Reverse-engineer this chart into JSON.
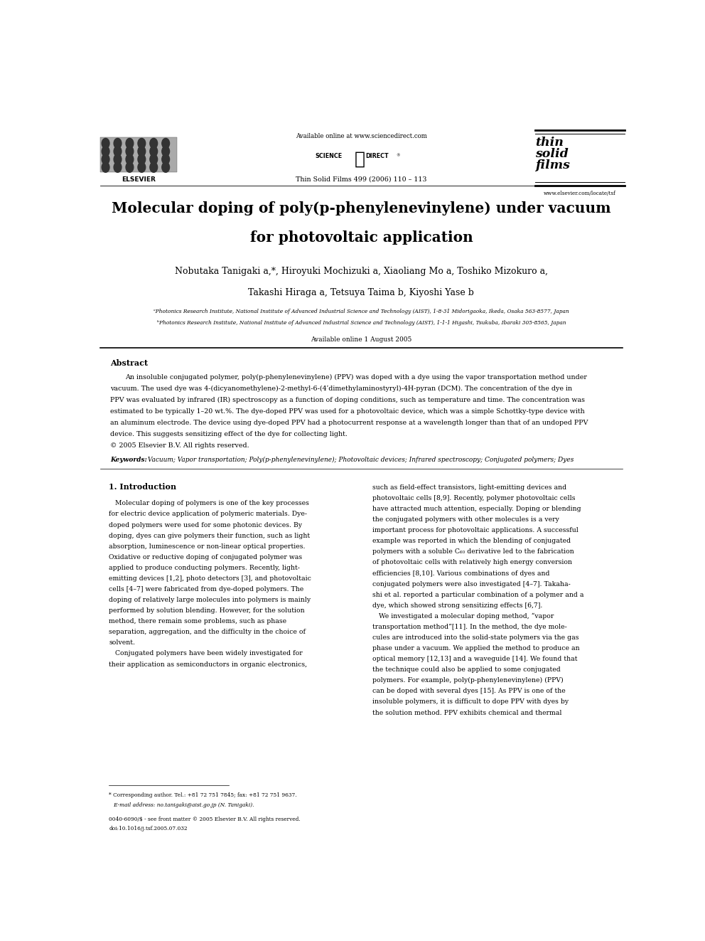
{
  "bg_color": "#ffffff",
  "page_width": 9.92,
  "page_height": 13.23,
  "dpi": 100,
  "header_available": "Available online at www.sciencedirect.com",
  "header_journal": "Thin Solid Films 499 (2006) 110 – 113",
  "header_website": "www.elsevier.com/locate/tsf",
  "title_full": "Molecular doping of poly(p-phenylenevinylene) under vacuum",
  "title_line2": "for photovoltaic application",
  "authors1": "Nobutaka Tanigaki a,*, Hiroyuki Mochizuki a, Xiaoliang Mo a, Toshiko Mizokuro a,",
  "authors2": "Takashi Hiraga a, Tetsuya Taima b, Kiyoshi Yase b",
  "affil_a": "ᵃPhotonics Research Institute, National Institute of Advanced Industrial Science and Technology (AIST), 1-8-31 Midorigaoka, Ikeda, Osaka 563-8577, Japan",
  "affil_b": "ᵇPhotonics Research Institute, National Institute of Advanced Industrial Science and Technology (AIST), 1-1-1 Higashi, Tsukuba, Ibaraki 305-8565, Japan",
  "available_online2": "Available online 1 August 2005",
  "abstract_title": "Abstract",
  "abstract_body": [
    "An insoluble conjugated polymer, poly(p-phenylenevinylene) (PPV) was doped with a dye using the vapor transportation method under",
    "vacuum. The used dye was 4-(dicyanomethylene)-2-methyl-6-(4ʹdimethylaminostyryl)-4H-pyran (DCM). The concentration of the dye in",
    "PPV was evaluated by infrared (IR) spectroscopy as a function of doping conditions, such as temperature and time. The concentration was",
    "estimated to be typically 1–20 wt.%. The dye-doped PPV was used for a photovoltaic device, which was a simple Schottky-type device with",
    "an aluminum electrode. The device using dye-doped PPV had a photocurrent response at a wavelength longer than that of an undoped PPV",
    "device. This suggests sensitizing effect of the dye for collecting light.",
    "© 2005 Elsevier B.V. All rights reserved."
  ],
  "keywords_label": "Keywords:",
  "keywords_text": " Vacuum; Vapor transportation; Poly(p-phenylenevinylene); Photovoltaic devices; Infrared spectroscopy; Conjugated polymers; Dyes",
  "section1_title": "1. Introduction",
  "col1_lines": [
    "   Molecular doping of polymers is one of the key processes",
    "for electric device application of polymeric materials. Dye-",
    "doped polymers were used for some photonic devices. By",
    "doping, dyes can give polymers their function, such as light",
    "absorption, luminescence or non-linear optical properties.",
    "Oxidative or reductive doping of conjugated polymer was",
    "applied to produce conducting polymers. Recently, light-",
    "emitting devices [1,2], photo detectors [3], and photovoltaic",
    "cells [4–7] were fabricated from dye-doped polymers. The",
    "doping of relatively large molecules into polymers is mainly",
    "performed by solution blending. However, for the solution",
    "method, there remain some problems, such as phase",
    "separation, aggregation, and the difficulty in the choice of",
    "solvent.",
    "   Conjugated polymers have been widely investigated for",
    "their application as semiconductors in organic electronics,"
  ],
  "col2_lines": [
    "such as field-effect transistors, light-emitting devices and",
    "photovoltaic cells [8,9]. Recently, polymer photovoltaic cells",
    "have attracted much attention, especially. Doping or blending",
    "the conjugated polymers with other molecules is a very",
    "important process for photovoltaic applications. A successful",
    "example was reported in which the blending of conjugated",
    "polymers with a soluble C₆₀ derivative led to the fabrication",
    "of photovoltaic cells with relatively high energy conversion",
    "efficiencies [8,10]. Various combinations of dyes and",
    "conjugated polymers were also investigated [4–7]. Takaha-",
    "shi et al. reported a particular combination of a polymer and a",
    "dye, which showed strong sensitizing effects [6,7].",
    "   We investigated a molecular doping method, “vapor",
    "transportation method”[11]. In the method, the dye mole-",
    "cules are introduced into the solid-state polymers via the gas",
    "phase under a vacuum. We applied the method to produce an",
    "optical memory [12,13] and a waveguide [14]. We found that",
    "the technique could also be applied to some conjugated",
    "polymers. For example, poly(p-phenylenevinylene) (PPV)",
    "can be doped with several dyes [15]. As PPV is one of the",
    "insoluble polymers, it is difficult to dope PPV with dyes by",
    "the solution method. PPV exhibits chemical and thermal"
  ],
  "footnote1": "* Corresponding author. Tel.: +81 72 751 7845; fax: +81 72 751 9637.",
  "footnote2": "   E-mail address: no.tanigaki@aist.go.jp (N. Tanigaki).",
  "footnote3": "0040-6090/$ - see front matter © 2005 Elsevier B.V. All rights reserved.",
  "footnote4": "doi:10.1016/j.tsf.2005.07.032"
}
